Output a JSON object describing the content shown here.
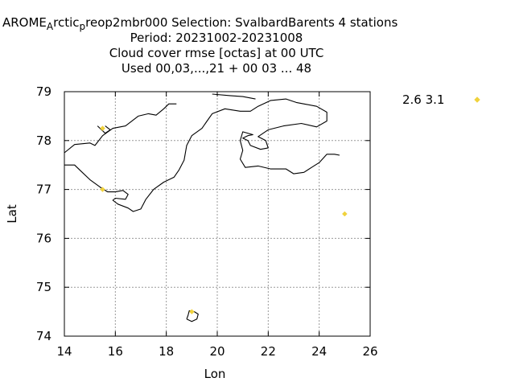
{
  "header": {
    "title_line1_a": "AROME",
    "title_line1_sub1": "A",
    "title_line1_b": "rctic",
    "title_line1_sub2": "p",
    "title_line1_c": "reop2mbr000   Selection: SvalbardBarents      4 stations",
    "title_line2": "Period: 20231002-20231008",
    "title_line3": "Cloud cover rmse [octas] at  00 UTC",
    "title_line4": "Used  00,03,...,21  + 00 03 ... 48"
  },
  "chart_data": {
    "type": "scatter",
    "xlabel": "Lon",
    "ylabel": "Lat",
    "xlim": [
      14,
      26
    ],
    "ylim": [
      74,
      79
    ],
    "xticks": [
      14,
      16,
      18,
      20,
      22,
      24,
      26
    ],
    "yticks": [
      74,
      75,
      76,
      77,
      78,
      79
    ],
    "grid": true,
    "legend_position": "right",
    "series": [
      {
        "name": "2.6 3.1",
        "color": "#f0d23c",
        "marker": "diamond",
        "points": [
          {
            "x": 15.5,
            "y": 78.25
          },
          {
            "x": 15.5,
            "y": 77.0
          },
          {
            "x": 25.0,
            "y": 76.5
          },
          {
            "x": 19.0,
            "y": 74.5
          }
        ]
      }
    ],
    "coastlines": [
      [
        [
          14.0,
          77.75
        ],
        [
          14.4,
          77.92
        ],
        [
          15.0,
          77.95
        ],
        [
          15.2,
          77.9
        ],
        [
          15.5,
          78.1
        ],
        [
          15.9,
          78.25
        ],
        [
          16.4,
          78.3
        ],
        [
          16.9,
          78.5
        ],
        [
          17.3,
          78.55
        ],
        [
          17.6,
          78.52
        ],
        [
          17.9,
          78.65
        ],
        [
          18.1,
          78.75
        ],
        [
          18.4,
          78.75
        ]
      ],
      [
        [
          15.3,
          78.3
        ],
        [
          15.6,
          78.15
        ],
        [
          15.8,
          78.22
        ],
        [
          15.6,
          78.3
        ]
      ],
      [
        [
          14.0,
          77.5
        ],
        [
          14.4,
          77.5
        ],
        [
          14.7,
          77.35
        ],
        [
          15.0,
          77.2
        ],
        [
          15.4,
          77.05
        ],
        [
          15.7,
          76.95
        ],
        [
          16.0,
          76.95
        ],
        [
          16.3,
          76.98
        ],
        [
          16.5,
          76.9
        ],
        [
          16.4,
          76.8
        ],
        [
          16.0,
          76.82
        ],
        [
          15.9,
          76.78
        ],
        [
          16.1,
          76.7
        ],
        [
          16.5,
          76.62
        ],
        [
          16.7,
          76.55
        ],
        [
          17.0,
          76.6
        ],
        [
          17.2,
          76.8
        ],
        [
          17.5,
          77.0
        ],
        [
          17.9,
          77.15
        ],
        [
          18.3,
          77.25
        ],
        [
          18.5,
          77.4
        ],
        [
          18.7,
          77.6
        ],
        [
          18.8,
          77.9
        ],
        [
          19.0,
          78.1
        ],
        [
          19.4,
          78.25
        ],
        [
          19.6,
          78.4
        ],
        [
          19.8,
          78.55
        ],
        [
          20.3,
          78.65
        ],
        [
          20.9,
          78.6
        ],
        [
          21.3,
          78.6
        ],
        [
          21.6,
          78.7
        ],
        [
          22.1,
          78.82
        ],
        [
          22.7,
          78.85
        ],
        [
          23.1,
          78.78
        ],
        [
          23.5,
          78.74
        ],
        [
          23.9,
          78.7
        ],
        [
          24.3,
          78.58
        ],
        [
          24.3,
          78.4
        ],
        [
          23.9,
          78.28
        ],
        [
          23.3,
          78.35
        ],
        [
          22.6,
          78.3
        ],
        [
          22.0,
          78.22
        ],
        [
          21.6,
          78.08
        ],
        [
          21.9,
          78.0
        ],
        [
          22.0,
          77.85
        ],
        [
          21.7,
          77.82
        ],
        [
          21.3,
          77.9
        ],
        [
          21.2,
          78.0
        ],
        [
          21.0,
          78.05
        ],
        [
          21.2,
          78.1
        ],
        [
          21.4,
          78.12
        ],
        [
          21.0,
          78.18
        ],
        [
          20.9,
          78.0
        ],
        [
          21.0,
          77.8
        ],
        [
          20.9,
          77.62
        ],
        [
          21.1,
          77.45
        ],
        [
          21.6,
          77.48
        ],
        [
          22.1,
          77.42
        ],
        [
          22.7,
          77.42
        ],
        [
          23.0,
          77.32
        ],
        [
          23.4,
          77.35
        ],
        [
          23.7,
          77.45
        ],
        [
          24.0,
          77.55
        ],
        [
          24.3,
          77.72
        ],
        [
          24.6,
          77.72
        ],
        [
          24.8,
          77.7
        ]
      ],
      [
        [
          19.8,
          78.95
        ],
        [
          20.5,
          78.92
        ],
        [
          21.0,
          78.9
        ],
        [
          21.5,
          78.85
        ]
      ],
      [
        [
          18.8,
          74.35
        ],
        [
          19.0,
          74.3
        ],
        [
          19.2,
          74.35
        ],
        [
          19.25,
          74.45
        ],
        [
          19.1,
          74.5
        ],
        [
          18.9,
          74.52
        ],
        [
          18.85,
          74.42
        ],
        [
          18.8,
          74.35
        ]
      ]
    ]
  }
}
